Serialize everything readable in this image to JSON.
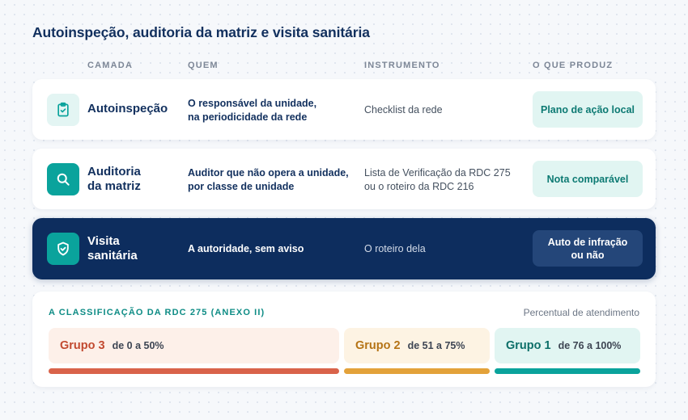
{
  "title": "Autoinspeção, auditoria da matriz e visita sanitária",
  "columns": {
    "layer": "CAMADA",
    "who": "QUEM",
    "instrument": "INSTRUMENTO",
    "output": "O QUE PRODUZ"
  },
  "rows": [
    {
      "icon": "clipboard-check-icon",
      "layer": "Autoinspeção",
      "who": "O responsável da unidade,\nna periodicidade da rede",
      "instrument": "Checklist da rede",
      "output": "Plano de ação local"
    },
    {
      "icon": "search-icon",
      "layer": "Auditoria\nda matriz",
      "who": "Auditor que não opera a unidade,\npor classe de unidade",
      "instrument": "Lista de Verificação da RDC 275\nou o roteiro da RDC 216",
      "output": "Nota comparável"
    },
    {
      "icon": "shield-check-icon",
      "layer": "Visita\nsanitária",
      "who": "A autoridade, sem aviso",
      "instrument": "O roteiro dela",
      "output": "Auto de infração\nou não"
    }
  ],
  "classification": {
    "title": "A CLASSIFICAÇÃO DA RDC 275 (ANEXO II)",
    "note": "Percentual de atendimento",
    "groups": [
      {
        "name": "Grupo 3",
        "range": "de 0 a 50%",
        "from": 0,
        "to": 50,
        "color": "#d9634a",
        "bg": "#fdf0e9",
        "text_color": "#c24a30"
      },
      {
        "name": "Grupo 2",
        "range": "de 51 a 75%",
        "from": 51,
        "to": 75,
        "color": "#e3a23a",
        "bg": "#fdf3e3",
        "text_color": "#b57416"
      },
      {
        "name": "Grupo 1",
        "range": "de 76 a 100%",
        "from": 76,
        "to": 100,
        "color": "#0aa39c",
        "bg": "#e1f5f2",
        "text_color": "#0d6f69"
      }
    ]
  }
}
